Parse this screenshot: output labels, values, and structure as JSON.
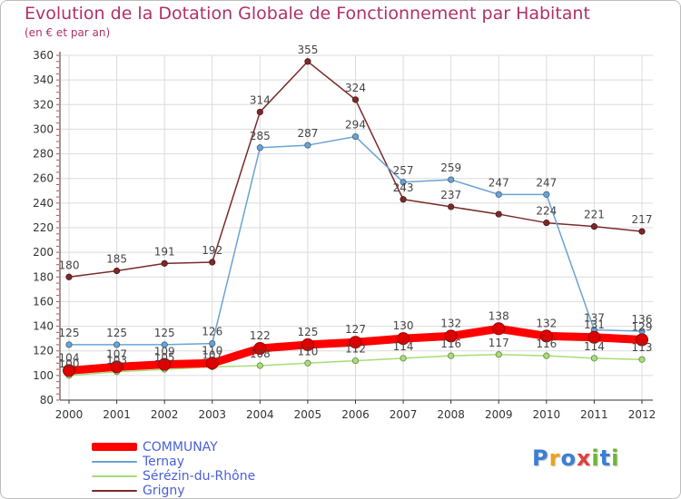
{
  "title": "Evolution de la Dotation Globale de Fonctionnement par Habitant",
  "subtitle": "(en € et par an)",
  "logo": {
    "text": "Proxiti",
    "letters": [
      "P",
      "r",
      "o",
      "x",
      "i",
      "t",
      "i"
    ],
    "colors": [
      "#3a7fd5",
      "#f0a020",
      "#3a7fd5",
      "#e04040",
      "#6ab830",
      "#3a7fd5",
      "#6ab830"
    ]
  },
  "chart_data": {
    "type": "line",
    "title": "Evolution de la Dotation Globale de Fonctionnement par Habitant",
    "ylabel": "(en € et par an)",
    "xlabel": "",
    "x": [
      "2000",
      "2001",
      "2002",
      "2003",
      "2004",
      "2005",
      "2006",
      "2007",
      "2008",
      "2009",
      "2010",
      "2011",
      "2012"
    ],
    "ylim": [
      80,
      360
    ],
    "yticks": [
      80,
      100,
      120,
      140,
      160,
      180,
      200,
      220,
      240,
      260,
      280,
      300,
      320,
      340,
      360
    ],
    "grid": true,
    "series": [
      {
        "name": "Grigny",
        "color": "#7b2a2a",
        "values": [
          180,
          185,
          191,
          192,
          314,
          355,
          324,
          243,
          237,
          231,
          224,
          221,
          217
        ],
        "labels": [
          "180",
          "185",
          "191",
          "192",
          "314",
          "355",
          "324",
          "243",
          "237",
          "",
          "224",
          "221",
          "217"
        ]
      },
      {
        "name": "Ternay",
        "color": "#6aa3d4",
        "values": [
          125,
          125,
          125,
          126,
          285,
          287,
          294,
          257,
          259,
          247,
          247,
          137,
          136
        ],
        "labels": [
          "125",
          "125",
          "125",
          "126",
          "285",
          "287",
          "294",
          "257",
          "259",
          "247",
          "247",
          "137",
          "136"
        ]
      },
      {
        "name": "Sérézin-du-Rhône",
        "color": "#a6dd78",
        "values": [
          100,
          103,
          105,
          107,
          108,
          110,
          112,
          114,
          116,
          117,
          116,
          114,
          113
        ],
        "labels": [
          "100",
          "103",
          "105",
          "107",
          "108",
          "110",
          "112",
          "114",
          "116",
          "117",
          "116",
          "114",
          "113"
        ]
      },
      {
        "name": "COMMUNAY",
        "color": "#ff0000",
        "values": [
          104,
          107,
          109,
          110,
          122,
          125,
          127,
          130,
          132,
          138,
          132,
          131,
          129
        ],
        "labels": [
          "104",
          "107",
          "109",
          "110",
          "122",
          "125",
          "127",
          "130",
          "132",
          "138",
          "132",
          "131",
          "129"
        ]
      }
    ]
  },
  "legend": [
    {
      "label": "COMMUNAY",
      "color": "#ff0000"
    },
    {
      "label": "Ternay",
      "color": "#6aa3d4"
    },
    {
      "label": "Sérézin-du-Rhône",
      "color": "#a6dd78"
    },
    {
      "label": "Grigny",
      "color": "#7b2a2a"
    }
  ]
}
